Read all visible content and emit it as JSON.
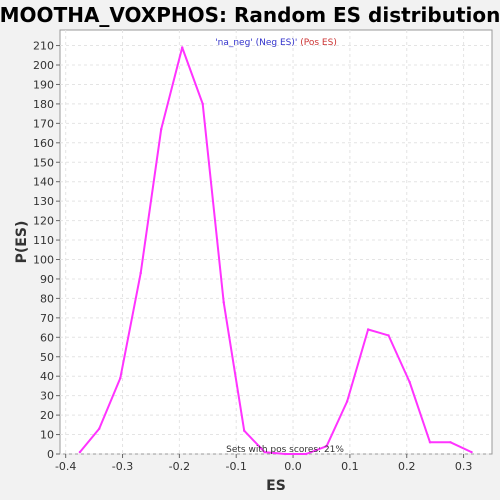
{
  "chart_data": {
    "type": "line",
    "title": "MOOTHA_VOXPHOS: Random ES distribution",
    "xlabel": "ES",
    "ylabel": "P(ES)",
    "xlim": [
      -0.41,
      0.35
    ],
    "ylim": [
      0,
      218
    ],
    "x_ticks": [
      -0.4,
      -0.3,
      -0.2,
      -0.1,
      0.0,
      0.1,
      0.2,
      0.3
    ],
    "x_tick_labels": [
      "-0.4",
      "-0.3",
      "-0.2",
      "-0.1",
      "0.0",
      "0.1",
      "0.2",
      "0.3"
    ],
    "y_ticks": [
      0,
      10,
      20,
      30,
      40,
      50,
      60,
      70,
      80,
      90,
      100,
      110,
      120,
      130,
      140,
      150,
      160,
      170,
      180,
      190,
      200,
      210
    ],
    "y_tick_labels": [
      "0",
      "10",
      "20",
      "30",
      "40",
      "50",
      "60",
      "70",
      "80",
      "90",
      "100",
      "110",
      "120",
      "130",
      "140",
      "150",
      "160",
      "170",
      "180",
      "190",
      "200",
      "210"
    ],
    "grid": true,
    "legend": {
      "placement": "top-center",
      "entries": [
        {
          "text": "'na_neg' (Neg ES)",
          "color": "#3333cc"
        },
        {
          "text": "'",
          "color": "#3333cc"
        },
        {
          "text": " (Pos ES)",
          "color": "#cc3333"
        }
      ]
    },
    "annotation": "Sets with pos scores: 21%",
    "series": [
      {
        "color": "#ff33ff",
        "x": [
          -0.375,
          -0.341,
          -0.304,
          -0.268,
          -0.232,
          -0.195,
          -0.159,
          -0.122,
          -0.086,
          -0.05,
          -0.014,
          0.023,
          0.059,
          0.095,
          0.132,
          0.168,
          0.205,
          0.241,
          0.277,
          0.314
        ],
        "y": [
          1,
          13,
          39,
          93,
          167,
          209,
          180,
          78,
          12,
          1,
          0,
          0,
          4,
          27,
          64,
          61,
          37,
          6,
          6,
          1
        ]
      }
    ]
  }
}
